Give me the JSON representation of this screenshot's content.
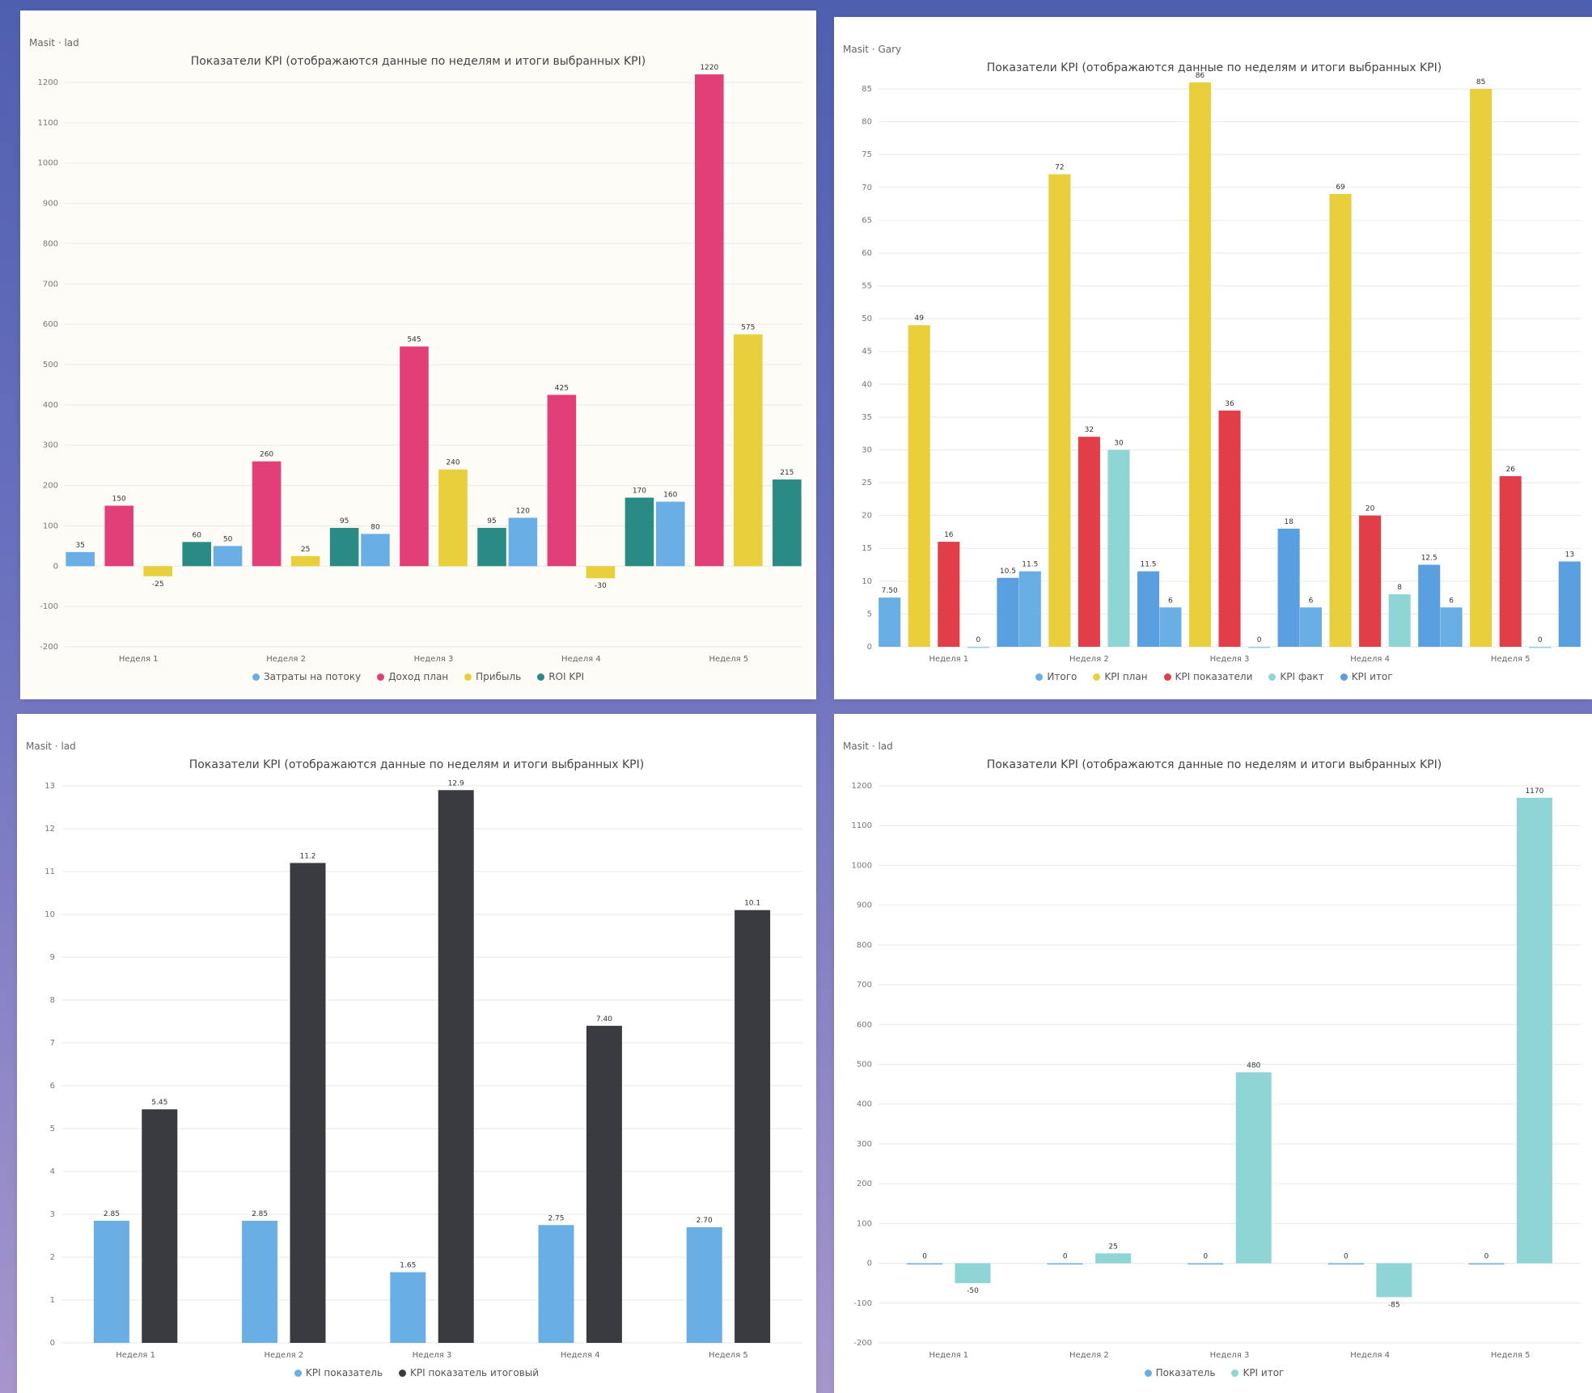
{
  "panels": [
    {
      "id": "p1",
      "corner_label": "Masit · lad",
      "corner_unit": "",
      "title": "Показатели KPI (отображаются данные по неделям и итоги выбранных KPI)",
      "legend": [
        "Затраты на потоку",
        "Доход план",
        "Прибыль",
        "ROI KPI"
      ],
      "colors": [
        "#6aaee6",
        "#e23e77",
        "#e8cf3b",
        "#2a8a84"
      ],
      "chart_data": {
        "type": "bar",
        "categories": [
          "Неделя 1",
          "Неделя 2",
          "Неделя 3",
          "Неделя 4",
          "Неделя 5"
        ],
        "ylim": [
          -200,
          1200
        ],
        "yticks": [
          -200,
          -100,
          0,
          100,
          200,
          300,
          400,
          500,
          600,
          700,
          800,
          900,
          1000,
          1100,
          1200
        ],
        "series": [
          {
            "name": "Затраты на потоку",
            "values": [
              35,
              50,
              80,
              120,
              160
            ]
          },
          {
            "name": "Доход план",
            "values": [
              150,
              260,
              545,
              425,
              1220
            ]
          },
          {
            "name": "Прибыль",
            "values": [
              -25,
              25,
              240,
              -30,
              575
            ]
          },
          {
            "name": "ROI KPI",
            "values": [
              60,
              95,
              95,
              170,
              215
            ]
          }
        ]
      }
    },
    {
      "id": "p2",
      "corner_label": "Masit · Gary",
      "corner_unit": "",
      "title": "Показатели KPI (отображаются данные по неделям и итоги выбранных KPI)",
      "legend": [
        "Итого",
        "KPI план",
        "KPI показатели",
        "KPI факт",
        "KPI итог"
      ],
      "colors": [
        "#6aaee6",
        "#e8cf3b",
        "#e23e48",
        "#8fd5d5",
        "#5aa0e0"
      ],
      "chart_data": {
        "type": "bar",
        "categories": [
          "Неделя 1",
          "Неделя 2",
          "Неделя 3",
          "Неделя 4",
          "Неделя 5"
        ],
        "ylim": [
          0,
          85
        ],
        "yticks": [
          0,
          5,
          10,
          15,
          20,
          25,
          30,
          35,
          40,
          45,
          50,
          55,
          60,
          65,
          70,
          75,
          80,
          85
        ],
        "series": [
          {
            "name": "Итого",
            "values": [
              7.5,
              11.5,
              6,
              6,
              6
            ]
          },
          {
            "name": "KPI план",
            "values": [
              49,
              72,
              86,
              69,
              85
            ]
          },
          {
            "name": "KPI показатели",
            "values": [
              16,
              32,
              36,
              20,
              26
            ]
          },
          {
            "name": "KPI факт",
            "values": [
              0,
              30,
              0,
              8,
              0
            ]
          },
          {
            "name": "KPI итог",
            "values": [
              10.5,
              11.5,
              18,
              12.5,
              13
            ]
          }
        ]
      }
    },
    {
      "id": "p3",
      "corner_label": "Masit · lad",
      "corner_unit": "",
      "title": "Показатели KPI (отображаются данные по неделям и итоги выбранных KPI)",
      "legend": [
        "KPI показатель",
        "KPI показатель итоговый"
      ],
      "colors": [
        "#6aaee6",
        "#3a3b40"
      ],
      "chart_data": {
        "type": "bar",
        "categories": [
          "Неделя 1",
          "Неделя 2",
          "Неделя 3",
          "Неделя 4",
          "Неделя 5"
        ],
        "ylim": [
          0,
          13
        ],
        "yticks": [
          0,
          1,
          2,
          3,
          4,
          5,
          6,
          7,
          8,
          9,
          10,
          11,
          12,
          13
        ],
        "series": [
          {
            "name": "KPI показатель",
            "values": [
              2.85,
              2.85,
              1.65,
              2.75,
              2.7
            ]
          },
          {
            "name": "KPI показатель итоговый",
            "values": [
              5.45,
              11.2,
              12.9,
              7.4,
              10.1
            ]
          }
        ]
      }
    },
    {
      "id": "p4",
      "corner_label": "Masit · lad",
      "corner_unit": "",
      "title": "Показатели KPI (отображаются данные по неделям и итоги выбранных KPI)",
      "legend": [
        "Показатель",
        "KPI итог"
      ],
      "colors": [
        "#6aaee6",
        "#8fd5d5"
      ],
      "chart_data": {
        "type": "bar",
        "categories": [
          "Неделя 1",
          "Неделя 2",
          "Неделя 3",
          "Неделя 4",
          "Неделя 5"
        ],
        "ylim": [
          -200,
          1200
        ],
        "yticks": [
          -200,
          -100,
          0,
          100,
          200,
          300,
          400,
          500,
          600,
          700,
          800,
          900,
          1000,
          1100,
          1200
        ],
        "series": [
          {
            "name": "Показатель",
            "values": [
              0,
              0,
              0,
              0,
              0
            ]
          },
          {
            "name": "KPI итог",
            "values": [
              -50,
              25,
              480,
              -85,
              1170
            ]
          }
        ]
      }
    }
  ]
}
